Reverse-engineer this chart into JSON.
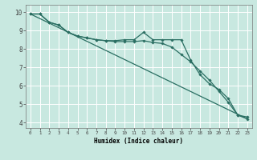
{
  "xlabel": "Humidex (Indice chaleur)",
  "background_color": "#c8e8e0",
  "grid_color": "#ffffff",
  "line_color": "#2a6e62",
  "xlim": [
    -0.5,
    23.5
  ],
  "ylim": [
    3.7,
    10.4
  ],
  "xticks": [
    0,
    1,
    2,
    3,
    4,
    5,
    6,
    7,
    8,
    9,
    10,
    11,
    12,
    13,
    14,
    15,
    16,
    17,
    18,
    19,
    20,
    21,
    22,
    23
  ],
  "yticks": [
    4,
    5,
    6,
    7,
    8,
    9,
    10
  ],
  "line1_x": [
    0,
    1,
    2,
    3,
    4,
    5,
    6,
    7,
    8,
    9,
    10,
    11,
    12,
    13,
    14,
    15,
    16,
    17,
    18,
    19,
    20,
    21,
    22,
    23
  ],
  "line1_y": [
    9.9,
    9.9,
    9.45,
    9.3,
    8.9,
    8.7,
    8.6,
    8.5,
    8.45,
    8.45,
    8.5,
    8.5,
    8.9,
    8.5,
    8.5,
    8.5,
    8.5,
    7.4,
    6.6,
    6.1,
    5.8,
    5.3,
    4.4,
    4.3
  ],
  "line2_x": [
    0,
    1,
    2,
    3,
    4,
    5,
    6,
    7,
    8,
    9,
    10,
    11,
    12,
    13,
    14,
    15,
    16,
    17,
    18,
    19,
    20,
    21,
    22,
    23
  ],
  "line2_y": [
    9.9,
    9.9,
    9.45,
    9.3,
    8.9,
    8.7,
    8.6,
    8.5,
    8.45,
    8.4,
    8.4,
    8.4,
    8.45,
    8.35,
    8.3,
    8.1,
    7.7,
    7.3,
    6.8,
    6.3,
    5.7,
    5.1,
    4.4,
    4.2
  ],
  "line3_x": [
    0,
    23
  ],
  "line3_y": [
    9.9,
    4.2
  ]
}
